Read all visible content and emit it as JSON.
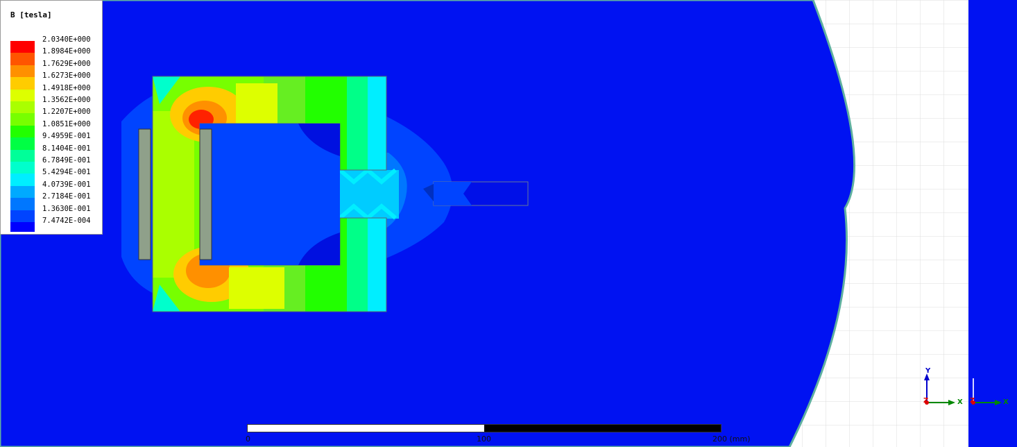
{
  "legend": {
    "title": "B [tesla]",
    "entries": [
      {
        "value": "2.0340E+000",
        "color": "#ff0000"
      },
      {
        "value": "1.8984E+000",
        "color": "#ff5500"
      },
      {
        "value": "1.7629E+000",
        "color": "#ff9000"
      },
      {
        "value": "1.6273E+000",
        "color": "#ffcc00"
      },
      {
        "value": "1.4918E+000",
        "color": "#ddff00"
      },
      {
        "value": "1.3562E+000",
        "color": "#aaff00"
      },
      {
        "value": "1.2207E+000",
        "color": "#77ff00"
      },
      {
        "value": "1.0851E+000",
        "color": "#22ff00"
      },
      {
        "value": "9.4959E-001",
        "color": "#00ff44"
      },
      {
        "value": "8.1404E-001",
        "color": "#00ff99"
      },
      {
        "value": "6.7849E-001",
        "color": "#00ffcc"
      },
      {
        "value": "5.4294E-001",
        "color": "#00eeff"
      },
      {
        "value": "4.0739E-001",
        "color": "#00aaff"
      },
      {
        "value": "2.7184E-001",
        "color": "#0077ff"
      },
      {
        "value": "1.3630E-001",
        "color": "#0044ff"
      },
      {
        "value": "7.4742E-004",
        "color": "#0000ff"
      }
    ]
  },
  "scale_bar": {
    "labels": [
      "0",
      "100",
      "200 (mm)"
    ]
  },
  "axes": {
    "y_label": "Y",
    "x_label": "X",
    "z_label": "Z"
  },
  "colors": {
    "background_field": "#0012f2",
    "grid_background": "#ffffff",
    "grid_lines": "#d8d8d8",
    "coil": "#8fa08a",
    "boundary": "#5fb0a0"
  }
}
